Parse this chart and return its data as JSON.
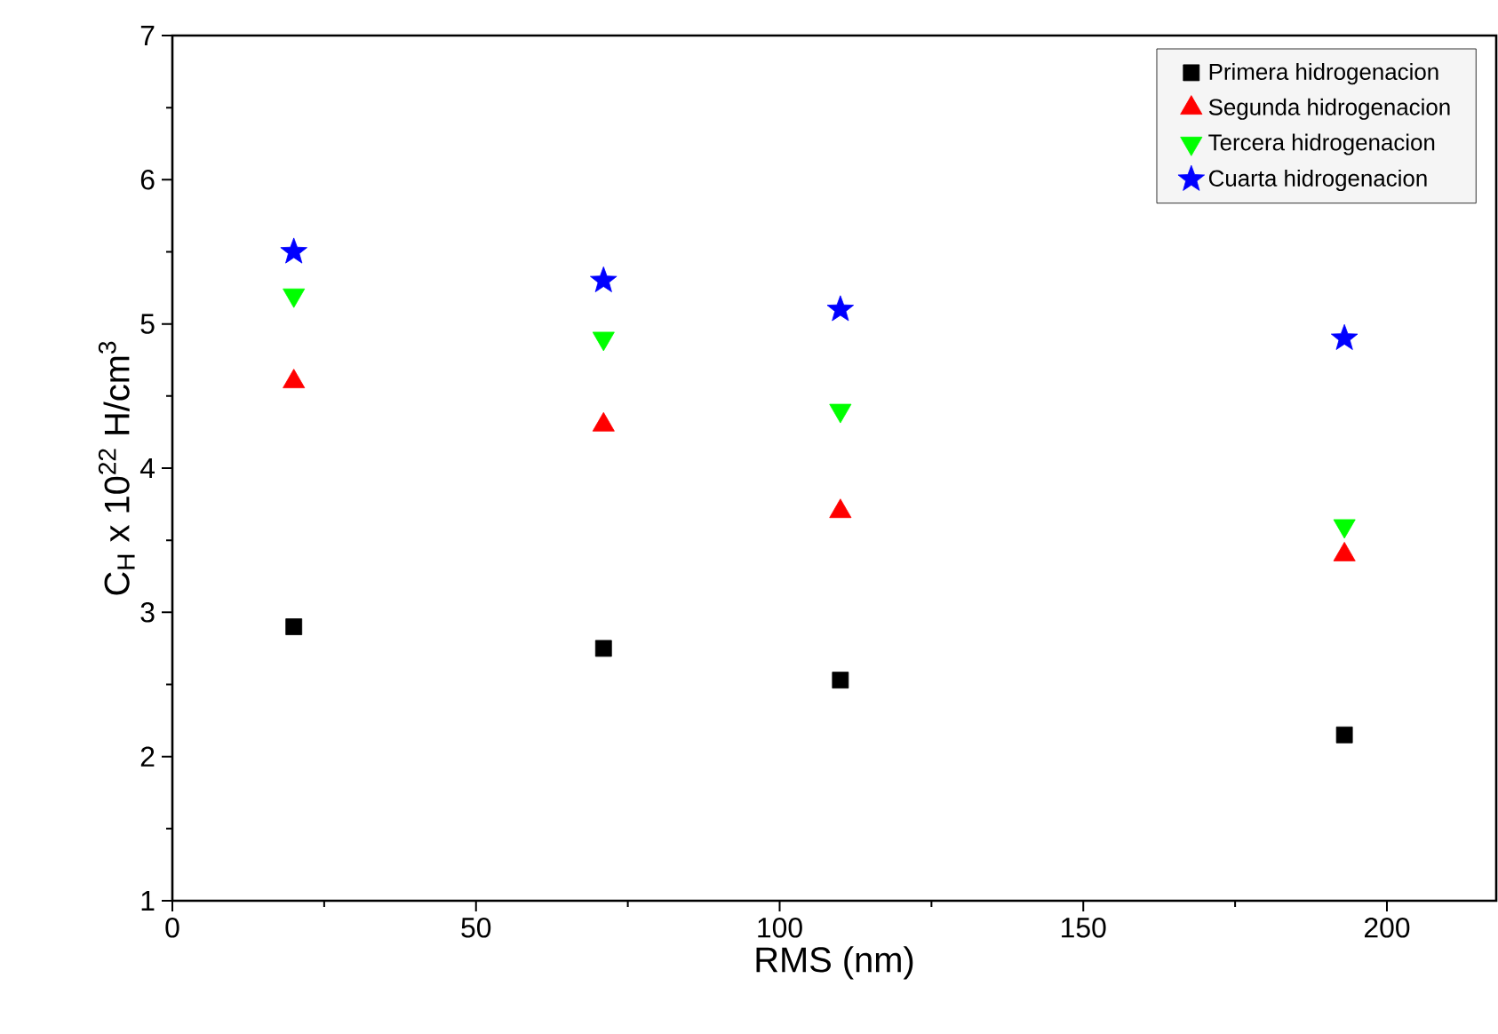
{
  "chart_data": {
    "type": "scatter",
    "xlabel": "RMS (nm)",
    "ylabel": "C$_{H}$ x 10$^{22}$ H/cm$^{3}$",
    "x": [
      20,
      71,
      110,
      193
    ],
    "series": [
      {
        "name": "Primera hidrogenacion",
        "color": "#000000",
        "marker": "square",
        "values": [
          2.9,
          2.75,
          2.53,
          2.15
        ]
      },
      {
        "name": "Segunda hidrogenacion",
        "color": "#ff0000",
        "marker": "triangle",
        "values": [
          4.6,
          4.3,
          3.7,
          3.4
        ]
      },
      {
        "name": "Tercera hidrogenacion",
        "color": "#00ff00",
        "marker": "triangle-down",
        "values": [
          5.2,
          4.9,
          4.4,
          3.6
        ]
      },
      {
        "name": "Cuarta hidrogenacion",
        "color": "#0000ff",
        "marker": "star",
        "values": [
          5.5,
          5.3,
          5.1,
          4.9
        ]
      }
    ],
    "xlim": [
      0,
      218
    ],
    "ylim": [
      1,
      7
    ],
    "xticks": [
      0,
      50,
      100,
      150,
      200
    ],
    "yticks": [
      1,
      2,
      3,
      4,
      5,
      6,
      7
    ],
    "grid": false,
    "legend": "top right"
  }
}
